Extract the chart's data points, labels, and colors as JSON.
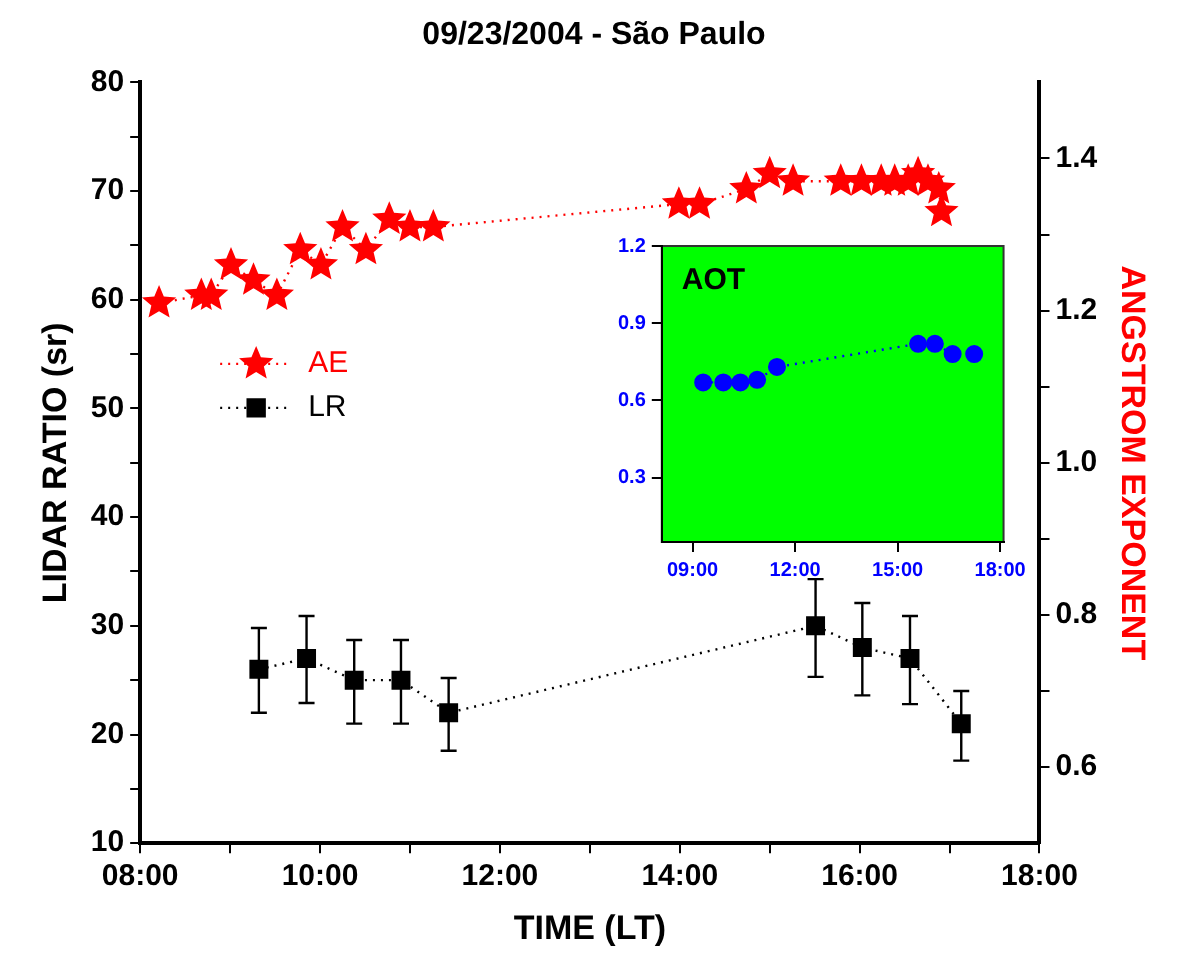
{
  "chart_data": [
    {
      "type": "line",
      "title": "09/23/2004 - São Paulo",
      "xlabel": "TIME (LT)",
      "ylabel": "LIDAR RATIO (sr)",
      "y2label": "ANGSTROM EXPONENT",
      "xlim": [
        8,
        18
      ],
      "xticks": [
        {
          "value": 8,
          "label": "08:00"
        },
        {
          "value": 9,
          "label": null
        },
        {
          "value": 10,
          "label": "10:00"
        },
        {
          "value": 11,
          "label": null
        },
        {
          "value": 12,
          "label": "12:00"
        },
        {
          "value": 13,
          "label": null
        },
        {
          "value": 14,
          "label": "14:00"
        },
        {
          "value": 15,
          "label": null
        },
        {
          "value": 16,
          "label": "16:00"
        },
        {
          "value": 17,
          "label": null
        },
        {
          "value": 18,
          "label": "18:00"
        }
      ],
      "ylim": [
        10,
        80
      ],
      "yticks": [
        10,
        {
          "value": 15,
          "label": null
        },
        20,
        {
          "value": 25,
          "label": null
        },
        30,
        {
          "value": 35,
          "label": null
        },
        40,
        {
          "value": 45,
          "label": null
        },
        50,
        {
          "value": 55,
          "label": null
        },
        60,
        {
          "value": 65,
          "label": null
        },
        70,
        {
          "value": 75,
          "label": null
        },
        80
      ],
      "y2lim": [
        0.5,
        1.5
      ],
      "y2ticks": [
        0.6,
        {
          "value": 0.7,
          "label": null
        },
        0.8,
        {
          "value": 0.9,
          "label": null
        },
        {
          "value": 1,
          "label": "1.0"
        },
        {
          "value": 1.1,
          "label": null
        },
        1.2,
        {
          "value": 1.3,
          "label": null
        },
        1.4
      ],
      "grid": false,
      "legend": "left",
      "line_style": "dotted",
      "series": [
        {
          "name": "AE",
          "color": "#ff0000",
          "axis": "y2",
          "marker": "star",
          "x": [
            8.21,
            8.68,
            8.79,
            9.01,
            9.26,
            9.52,
            9.78,
            10.01,
            10.25,
            10.51,
            10.77,
            11.0,
            11.26,
            13.99,
            14.22,
            14.74,
            15.0,
            15.26,
            15.79,
            16.02,
            16.24,
            16.39,
            16.54,
            16.65,
            16.76,
            16.88,
            16.91
          ],
          "values": [
            1.21,
            1.22,
            1.22,
            1.26,
            1.24,
            1.22,
            1.28,
            1.26,
            1.31,
            1.28,
            1.32,
            1.31,
            1.31,
            1.34,
            1.34,
            1.36,
            1.38,
            1.37,
            1.37,
            1.37,
            1.37,
            1.37,
            1.37,
            1.38,
            1.37,
            1.36,
            1.33
          ]
        },
        {
          "name": "LR",
          "color": "#000000",
          "marker": "square",
          "x": [
            9.32,
            9.85,
            10.38,
            10.9,
            11.43,
            15.51,
            16.03,
            16.56,
            17.13
          ],
          "values": [
            26,
            27,
            25,
            25,
            22,
            30,
            28,
            27,
            21
          ],
          "errors": [
            [
              22,
              29.8
            ],
            [
              22.9,
              30.9
            ],
            [
              21,
              28.7
            ],
            [
              21,
              28.7
            ],
            [
              18.5,
              25.2
            ],
            [
              25.3,
              34.3
            ],
            [
              23.6,
              32.1
            ],
            [
              22.8,
              30.9
            ],
            [
              17.6,
              24
            ]
          ]
        }
      ]
    },
    {
      "type": "line",
      "title": "AOT",
      "xlim": [
        8.1,
        18.1
      ],
      "xticks": [
        {
          "value": 9,
          "label": "09:00"
        },
        {
          "value": 12,
          "label": "12:00"
        },
        {
          "value": 15,
          "label": "15:00"
        },
        {
          "value": 18,
          "label": "18:00"
        }
      ],
      "ylim": [
        0.05,
        1.2
      ],
      "yticks": [
        0.3,
        0.6,
        0.9,
        1.2
      ],
      "grid": false,
      "line_style": "dotted",
      "series": [
        {
          "color": "#0000ff",
          "marker": "circle",
          "x": [
            9.31,
            9.9,
            10.4,
            10.89,
            11.47,
            15.6,
            16.09,
            16.61,
            17.24
          ],
          "values": [
            0.67,
            0.67,
            0.67,
            0.68,
            0.73,
            0.82,
            0.82,
            0.78,
            0.78
          ]
        }
      ]
    }
  ]
}
